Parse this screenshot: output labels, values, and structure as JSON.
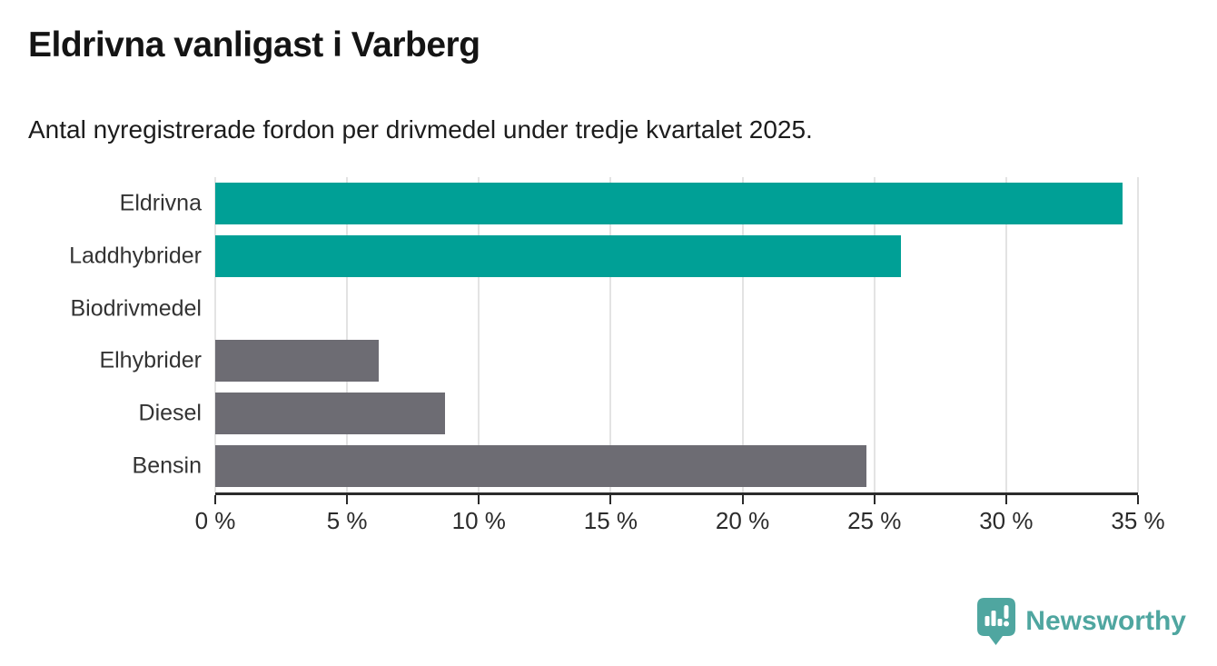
{
  "header": {
    "title": "Eldrivna vanligast i Varberg",
    "subtitle": "Antal nyregistrerade fordon per drivmedel under tredje kvartalet 2025."
  },
  "chart_data": {
    "type": "bar",
    "orientation": "horizontal",
    "title": "Eldrivna vanligast i Varberg",
    "subtitle": "Antal nyregistrerade fordon per drivmedel under tredje kvartalet 2025.",
    "categories": [
      "Eldrivna",
      "Laddhybrider",
      "Biodrivmedel",
      "Elhybrider",
      "Diesel",
      "Bensin"
    ],
    "values": [
      34.4,
      26.0,
      0.0,
      6.2,
      8.7,
      24.7
    ],
    "unit": "%",
    "xlabel": "",
    "ylabel": "",
    "xlim": [
      0,
      35
    ],
    "x_ticks": [
      0,
      5,
      10,
      15,
      20,
      25,
      30,
      35
    ],
    "x_tick_labels": [
      "0 %",
      "5 %",
      "10 %",
      "15 %",
      "20 %",
      "25 %",
      "30 %",
      "35 %"
    ],
    "bar_colors": [
      "#00a096",
      "#00a096",
      "#6d6c73",
      "#6d6c73",
      "#6d6c73",
      "#6d6c73"
    ],
    "grid": true,
    "legend_position": "none"
  },
  "colors": {
    "background": "#ffffff",
    "accent_teal": "#00a096",
    "neutral_gray": "#6d6c73",
    "title": "#141414",
    "subtitle": "#1c1c1c",
    "category_label": "#333333",
    "axis": "#2b2b2b",
    "gridline": "#e3e3e3",
    "brand": "#4fa6a0"
  },
  "footer": {
    "brand": "Newsworthy"
  }
}
